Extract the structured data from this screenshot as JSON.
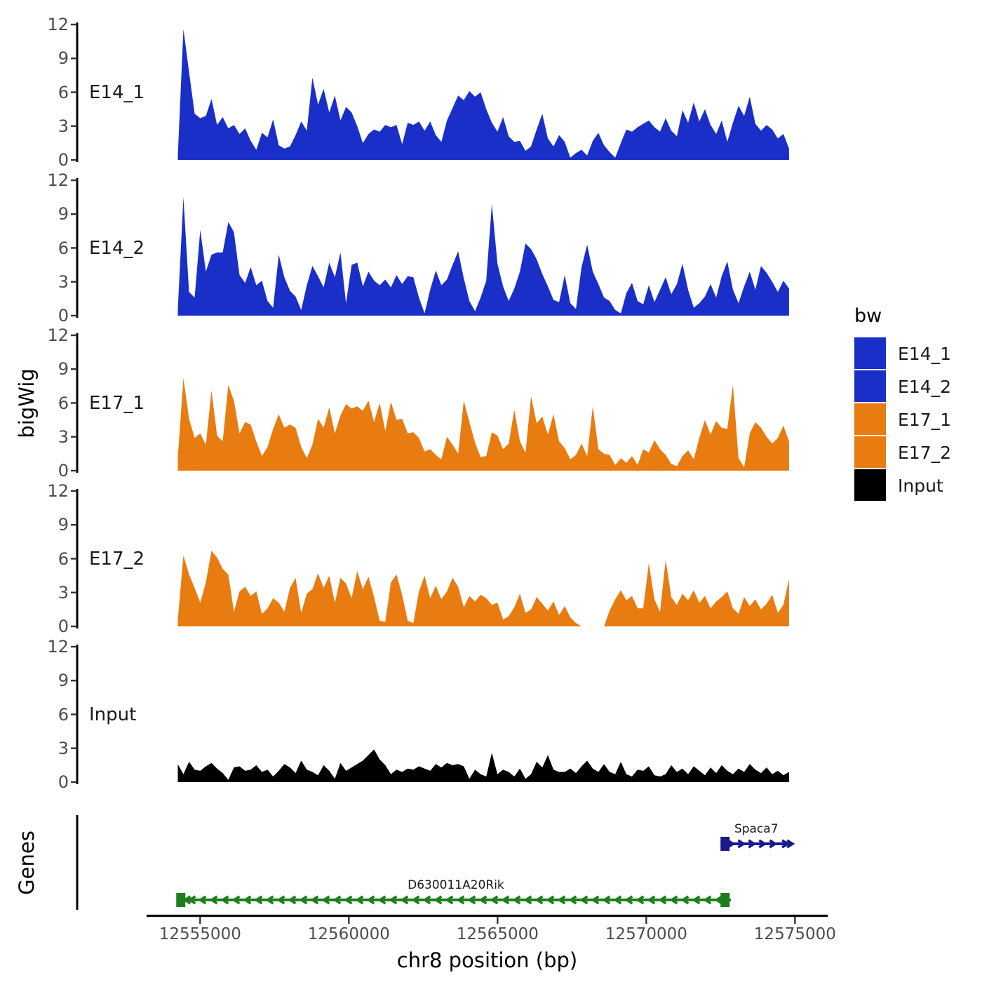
{
  "figure": {
    "y_axis_label": "bigWig",
    "genes_axis_label": "Genes",
    "x_axis_title": "chr8 position (bp)"
  },
  "legend": {
    "title": "bw",
    "items": [
      {
        "label": "E14_1",
        "color": "#1A2FC8"
      },
      {
        "label": "E14_2",
        "color": "#1A2FC8"
      },
      {
        "label": "E17_1",
        "color": "#E87C10"
      },
      {
        "label": "E17_2",
        "color": "#E87C10"
      },
      {
        "label": "Input",
        "color": "#000000"
      }
    ]
  },
  "chart_data": {
    "type": "area",
    "title": "",
    "xlabel": "chr8 position (bp)",
    "ylabel": "bigWig",
    "xlim": [
      12553200,
      12576100
    ],
    "x_ticks": [
      12555000,
      12560000,
      12565000,
      12570000,
      12575000
    ],
    "x_tick_labels": [
      "12555000",
      "12560000",
      "12565000",
      "12570000",
      "12575000"
    ],
    "track_ylim": [
      0,
      12
    ],
    "y_ticks": [
      0,
      3,
      6,
      9,
      12
    ],
    "data_start": 12554250,
    "data_end": 12574800,
    "grid": false,
    "legend_position": "right",
    "tracks": [
      {
        "name": "E14_1",
        "color": "#1A2FC8",
        "values": [
          0.4,
          11.6,
          7.8,
          4.1,
          3.7,
          3.9,
          5.4,
          3.1,
          3.8,
          2.8,
          3.1,
          2.3,
          2.8,
          1.7,
          0.9,
          2.4,
          2.0,
          3.6,
          1.3,
          1.0,
          1.2,
          2.2,
          3.4,
          2.6,
          7.3,
          4.9,
          6.3,
          4.2,
          5.7,
          3.5,
          4.7,
          4.2,
          3.0,
          1.5,
          2.3,
          2.7,
          2.5,
          3.1,
          2.9,
          3.1,
          1.4,
          3.3,
          3.1,
          3.4,
          2.6,
          3.4,
          2.2,
          1.6,
          3.5,
          4.6,
          5.7,
          5.3,
          6.1,
          5.6,
          6.0,
          4.5,
          3.3,
          2.5,
          3.8,
          2.1,
          1.6,
          1.7,
          0.8,
          1.2,
          2.7,
          4.1,
          1.9,
          1.2,
          2.2,
          1.6,
          0.2,
          0.6,
          0.9,
          0.4,
          1.7,
          2.4,
          1.3,
          0.7,
          0.2,
          1.5,
          2.7,
          2.5,
          2.9,
          3.2,
          3.5,
          2.9,
          2.5,
          3.7,
          2.6,
          2.1,
          4.4,
          3.3,
          5.1,
          3.4,
          4.5,
          3.1,
          2.3,
          3.5,
          1.6,
          3.3,
          4.8,
          3.9,
          5.6,
          3.2,
          2.6,
          3.1,
          2.7,
          1.9,
          2.3,
          1.0
        ]
      },
      {
        "name": "E14_2",
        "color": "#1A2FC8",
        "values": [
          0.6,
          10.5,
          2.1,
          1.6,
          7.6,
          3.9,
          5.4,
          5.6,
          5.6,
          8.3,
          7.4,
          3.6,
          2.9,
          4.3,
          2.7,
          3.1,
          1.3,
          0.7,
          5.4,
          3.4,
          2.2,
          1.7,
          0.5,
          2.7,
          4.4,
          3.5,
          2.5,
          4.7,
          3.4,
          5.6,
          1.1,
          4.5,
          4.7,
          2.6,
          3.9,
          3.1,
          2.7,
          3.2,
          2.5,
          3.6,
          2.8,
          3.5,
          3.4,
          1.6,
          0.2,
          2.3,
          4.0,
          2.7,
          3.2,
          4.5,
          5.7,
          3.3,
          1.3,
          0.4,
          1.6,
          3.1,
          9.9,
          4.6,
          2.6,
          1.3,
          2.4,
          3.9,
          6.4,
          5.9,
          5.0,
          3.7,
          2.6,
          1.4,
          1.2,
          3.6,
          1.1,
          0.6,
          4.3,
          6.3,
          3.9,
          2.8,
          1.6,
          1.3,
          0.5,
          0.2,
          2.0,
          2.9,
          1.3,
          1.0,
          2.7,
          1.2,
          2.3,
          3.4,
          1.9,
          2.8,
          4.6,
          2.3,
          0.7,
          1.1,
          1.7,
          2.8,
          1.6,
          3.5,
          4.8,
          2.3,
          1.1,
          2.6,
          3.9,
          2.3,
          4.4,
          3.8,
          3.0,
          2.1,
          3.1,
          2.4
        ]
      },
      {
        "name": "E17_1",
        "color": "#E87C10",
        "values": [
          1.2,
          8.2,
          4.6,
          2.9,
          3.3,
          2.3,
          7.1,
          3.1,
          2.6,
          7.6,
          6.2,
          3.3,
          4.3,
          4.1,
          2.6,
          1.3,
          2.1,
          3.7,
          5.0,
          3.8,
          4.1,
          3.8,
          2.1,
          1.1,
          2.3,
          4.6,
          3.8,
          5.6,
          3.3,
          4.9,
          5.9,
          5.5,
          5.7,
          5.3,
          6.2,
          4.3,
          6.0,
          3.5,
          6.1,
          4.5,
          4.6,
          3.3,
          3.4,
          2.9,
          1.7,
          1.9,
          1.4,
          1.0,
          3.0,
          2.3,
          1.5,
          6.2,
          4.3,
          2.5,
          1.2,
          1.3,
          3.4,
          3.1,
          1.9,
          2.4,
          5.4,
          2.6,
          1.6,
          6.6,
          4.2,
          4.8,
          3.2,
          5.0,
          2.6,
          2.0,
          1.0,
          1.4,
          2.4,
          1.3,
          5.7,
          1.9,
          1.5,
          1.4,
          0.5,
          1.1,
          0.7,
          1.3,
          0.5,
          1.9,
          1.6,
          2.7,
          1.9,
          1.4,
          0.6,
          0.4,
          1.3,
          1.8,
          1.0,
          2.9,
          4.5,
          3.2,
          4.4,
          3.8,
          3.7,
          7.6,
          1.1,
          0.3,
          3.3,
          4.3,
          3.8,
          3.0,
          2.4,
          2.9,
          4.0,
          2.6
        ]
      },
      {
        "name": "E17_2",
        "color": "#E87C10",
        "values": [
          0.6,
          6.3,
          4.6,
          3.4,
          2.1,
          3.9,
          6.7,
          6.1,
          5.1,
          4.6,
          1.3,
          3.1,
          3.5,
          2.7,
          3.1,
          1.1,
          1.6,
          2.5,
          2.1,
          1.3,
          3.4,
          4.3,
          1.2,
          2.9,
          3.3,
          4.7,
          3.4,
          4.5,
          2.1,
          4.3,
          3.8,
          2.5,
          4.9,
          3.3,
          4.4,
          2.6,
          0.5,
          0.4,
          3.9,
          4.6,
          2.8,
          0.5,
          0.3,
          3.1,
          4.5,
          2.5,
          3.6,
          2.4,
          3.1,
          4.3,
          3.5,
          1.7,
          2.7,
          2.2,
          2.8,
          2.5,
          1.9,
          2.1,
          0.6,
          0.9,
          1.7,
          2.9,
          1.2,
          1.5,
          2.6,
          2.0,
          1.4,
          2.2,
          1.0,
          1.8,
          0.8,
          0.3,
          0,
          0,
          0,
          0,
          0,
          1.4,
          2.4,
          3.2,
          2.3,
          2.7,
          1.6,
          1.6,
          5.6,
          2.4,
          1.3,
          5.9,
          2.6,
          1.9,
          2.9,
          2.3,
          3.2,
          2.1,
          2.7,
          1.6,
          2.2,
          2.6,
          3.1,
          1.6,
          1.1,
          2.6,
          1.8,
          2.4,
          1.5,
          2.0,
          2.8,
          1.2,
          1.9,
          4.2
        ]
      },
      {
        "name": "Input",
        "color": "#000000",
        "values": [
          1.6,
          0.7,
          1.8,
          1.1,
          1.0,
          1.4,
          1.7,
          1.2,
          0.8,
          0.2,
          1.3,
          1.4,
          1.0,
          1.1,
          1.5,
          0.9,
          1.1,
          0.5,
          1.0,
          1.6,
          1.3,
          0.8,
          1.9,
          1.1,
          0.9,
          0.6,
          1.5,
          1.0,
          0.3,
          1.7,
          1.0,
          1.3,
          1.6,
          1.9,
          2.4,
          2.9,
          2.0,
          1.5,
          0.7,
          1.1,
          0.9,
          1.2,
          1.1,
          1.4,
          1.2,
          1.0,
          1.6,
          1.3,
          1.7,
          1.5,
          1.6,
          1.4,
          0.3,
          1.1,
          0.7,
          0.5,
          2.6,
          0.7,
          1.1,
          0.9,
          0.5,
          1.2,
          0.3,
          0.7,
          1.8,
          1.3,
          2.4,
          1.1,
          0.9,
          0.9,
          1.2,
          0.8,
          1.4,
          1.9,
          1.2,
          0.9,
          1.6,
          0.9,
          0.7,
          1.8,
          0.7,
          0.5,
          1.1,
          1.0,
          1.4,
          0.6,
          0.5,
          0.7,
          1.5,
          0.9,
          1.2,
          0.7,
          1.4,
          1.0,
          0.6,
          1.3,
          0.8,
          1.5,
          1.0,
          0.7,
          1.2,
          0.9,
          1.6,
          1.1,
          0.8,
          1.3,
          0.7,
          1.0,
          0.6,
          0.9
        ]
      }
    ],
    "genes": [
      {
        "name": "Spaca7",
        "color": "#1A1A8C",
        "strand": "+",
        "row": 0,
        "start": 12572500,
        "end": 12574900,
        "blocks": [
          12572650
        ],
        "label_bp": 12573700
      },
      {
        "name": "D630011A20Rik",
        "color": "#1E7E1E",
        "strand": "-",
        "row": 1,
        "start": 12554200,
        "end": 12572850,
        "blocks": [
          12554350,
          12572650
        ],
        "label_bp": 12563600
      }
    ]
  }
}
